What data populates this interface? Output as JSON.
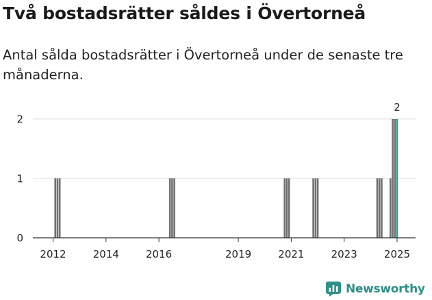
{
  "header": {
    "title": "Två bostadsrätter såldes i Övertorneå",
    "subtitle": "Antal sålda bostadsrätter i Övertorneå under de senaste tre månaderna."
  },
  "brand": {
    "name": "Newsworthy",
    "logo_icon": "newsworthy-chart-icon",
    "color": "#2e8f86"
  },
  "chart_data": {
    "type": "bar",
    "ylim": [
      0,
      2
    ],
    "yticks": [
      0,
      1,
      2
    ],
    "xticks": [
      "2012",
      "2014",
      "2016",
      "2019",
      "2021",
      "2023",
      "2025"
    ],
    "grid": true,
    "bars": [
      {
        "date": "2012-02",
        "value": 1
      },
      {
        "date": "2012-03",
        "value": 1
      },
      {
        "date": "2012-04",
        "value": 1
      },
      {
        "date": "2016-06",
        "value": 1
      },
      {
        "date": "2016-07",
        "value": 1
      },
      {
        "date": "2016-08",
        "value": 1
      },
      {
        "date": "2020-10",
        "value": 1
      },
      {
        "date": "2020-11",
        "value": 1
      },
      {
        "date": "2020-12",
        "value": 1
      },
      {
        "date": "2021-11",
        "value": 1
      },
      {
        "date": "2021-12",
        "value": 1
      },
      {
        "date": "2022-01",
        "value": 1
      },
      {
        "date": "2024-04",
        "value": 1
      },
      {
        "date": "2024-05",
        "value": 1
      },
      {
        "date": "2024-06",
        "value": 1
      },
      {
        "date": "2024-10",
        "value": 1
      },
      {
        "date": "2024-11",
        "value": 2
      },
      {
        "date": "2024-12",
        "value": 2
      },
      {
        "date": "2025-01",
        "value": 2,
        "highlight": true
      }
    ],
    "data_labels": [
      {
        "date": "2025-01",
        "text": "2"
      }
    ],
    "colors": {
      "bar": "#707070",
      "highlight": "#2e9a8e",
      "grid": "#dddddd",
      "axis": "#333333",
      "text": "#222222"
    }
  }
}
